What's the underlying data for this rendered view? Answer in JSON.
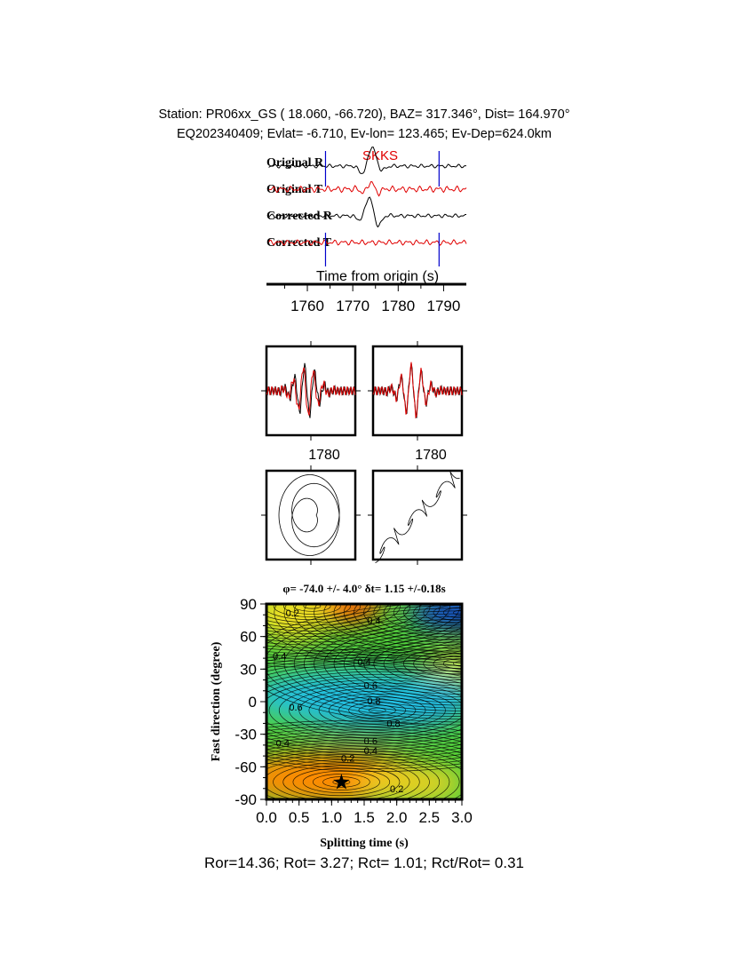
{
  "header": {
    "line1": "Station: PR06xx_GS (  18.060,  -66.720), BAZ=  317.346°, Dist=  164.970°",
    "line2": "EQ202340409; Evlat=  -6.710, Ev-lon= 123.465; Ev-Dep=624.0km"
  },
  "chart_data": [
    {
      "type": "line",
      "title": "",
      "phase_label": "SKKS",
      "trace_labels": [
        "Original R",
        "Original T",
        "Corrected R",
        "Corrected T"
      ],
      "trace_colors": [
        "#000000",
        "#e00000",
        "#000000",
        "#e00000"
      ],
      "xlabel": "Time from origin (s)",
      "xticks": [
        1760,
        1770,
        1780,
        1790
      ],
      "xlim": [
        1751,
        1795
      ],
      "window_marks": [
        1764,
        1789
      ],
      "window_color": "#0000cc"
    },
    {
      "type": "line",
      "panels": [
        "fast-slow waveforms before correction",
        "fast-slow waveforms after correction"
      ],
      "xticks": [
        1780
      ],
      "colors": [
        "#000000",
        "#e00000"
      ]
    },
    {
      "type": "line",
      "panels": [
        "particle motion before correction",
        "particle motion after correction"
      ]
    },
    {
      "type": "heatmap",
      "title": "φ= -74.0 +/- 4.0° δt= 1.15 +/-0.18s",
      "xlabel": "Splitting time (s)",
      "ylabel": "Fast direction (degree)",
      "xlim": [
        0,
        3
      ],
      "ylim": [
        -90,
        90
      ],
      "xticks": [
        "0.0",
        "0.5",
        "1.0",
        "1.5",
        "2.0",
        "2.5",
        "3.0"
      ],
      "yticks": [
        "90",
        "60",
        "30",
        "0",
        "-30",
        "-60",
        "-90"
      ],
      "best": {
        "dt": 1.15,
        "phi": -74
      },
      "contour_labels": [
        {
          "text": "0.4",
          "dt": 0.2,
          "phi": 42
        },
        {
          "text": "0.4",
          "dt": 1.5,
          "phi": 37
        },
        {
          "text": "0.4",
          "dt": 1.65,
          "phi": 75
        },
        {
          "text": "0.6",
          "dt": 1.6,
          "phi": 15
        },
        {
          "text": "0.8",
          "dt": 1.65,
          "phi": 1
        },
        {
          "text": "0.8",
          "dt": 1.95,
          "phi": -20
        },
        {
          "text": "0.6",
          "dt": 1.6,
          "phi": -36
        },
        {
          "text": "0.4",
          "dt": 1.6,
          "phi": -45
        },
        {
          "text": "0.2",
          "dt": 1.25,
          "phi": -52
        },
        {
          "text": "0.2",
          "dt": 2.0,
          "phi": -80
        },
        {
          "text": "0.4",
          "dt": 0.25,
          "phi": -38
        },
        {
          "text": "0.6",
          "dt": 0.45,
          "phi": -5
        },
        {
          "text": "0.2",
          "dt": 0.4,
          "phi": 82
        }
      ]
    }
  ],
  "footer": "Ror=14.36; Rot= 3.27; Rct= 1.01; Rct/Rot= 0.31"
}
